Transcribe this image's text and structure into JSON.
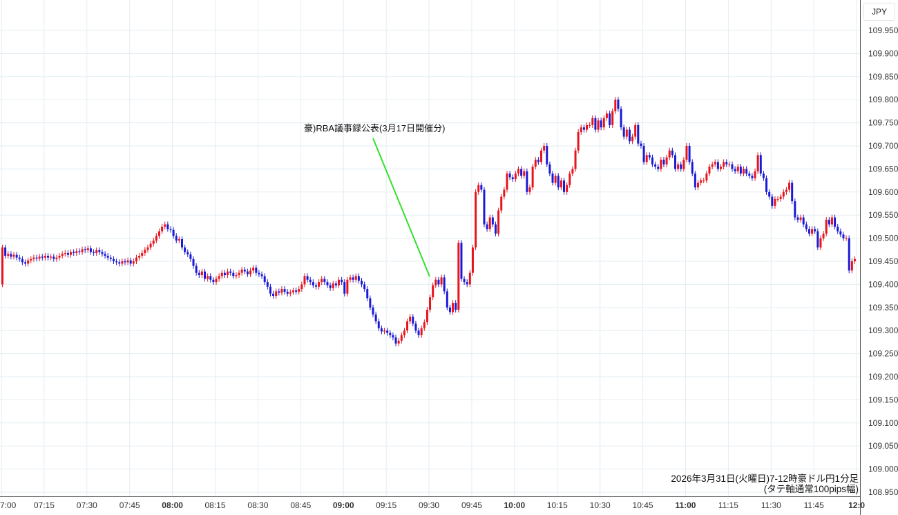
{
  "currency_label": "JPY",
  "annotation": "豪)RBA議事録公表(3月17日開催分)",
  "caption": {
    "line1": "2026年3月31日(火曜日)7-12時豪ドル円1分足",
    "line2": "(タテ軸通常100pips幅)"
  },
  "chart_data": {
    "type": "candlestick",
    "interval": "1 minute",
    "up_color": "#e8141c",
    "down_color": "#1a1ad6",
    "annotation_color": "#33e02a",
    "grid": true,
    "ylim": [
      108.95,
      109.95
    ],
    "yticks": [
      "109.950",
      "109.900",
      "109.850",
      "109.800",
      "109.750",
      "109.700",
      "109.650",
      "109.600",
      "109.550",
      "109.500",
      "109.450",
      "109.400",
      "109.350",
      "109.300",
      "109.250",
      "109.200",
      "109.150",
      "109.100",
      "109.050",
      "109.000",
      "108.950"
    ],
    "xticks": [
      {
        "label": "7:00",
        "bold": false
      },
      {
        "label": "07:15",
        "bold": false
      },
      {
        "label": "07:30",
        "bold": false
      },
      {
        "label": "07:45",
        "bold": false
      },
      {
        "label": "08:00",
        "bold": true
      },
      {
        "label": "08:15",
        "bold": false
      },
      {
        "label": "08:30",
        "bold": false
      },
      {
        "label": "08:45",
        "bold": false
      },
      {
        "label": "09:00",
        "bold": true
      },
      {
        "label": "09:15",
        "bold": false
      },
      {
        "label": "09:30",
        "bold": false
      },
      {
        "label": "09:45",
        "bold": false
      },
      {
        "label": "10:00",
        "bold": true
      },
      {
        "label": "10:15",
        "bold": false
      },
      {
        "label": "10:30",
        "bold": false
      },
      {
        "label": "10:45",
        "bold": false
      },
      {
        "label": "11:00",
        "bold": true
      },
      {
        "label": "11:15",
        "bold": false
      },
      {
        "label": "11:30",
        "bold": false
      },
      {
        "label": "11:45",
        "bold": false
      },
      {
        "label": "12:0",
        "bold": true
      }
    ],
    "annotation_time": "09:30",
    "start_time": "07:00",
    "close": [
      109.48,
      109.462,
      109.466,
      109.46,
      109.464,
      109.458,
      109.455,
      109.448,
      109.445,
      109.452,
      109.455,
      109.458,
      109.456,
      109.46,
      109.458,
      109.462,
      109.458,
      109.46,
      109.455,
      109.458,
      109.462,
      109.466,
      109.468,
      109.464,
      109.47,
      109.468,
      109.472,
      109.47,
      109.476,
      109.474,
      109.478,
      109.47,
      109.468,
      109.474,
      109.47,
      109.466,
      109.462,
      109.458,
      109.455,
      109.45,
      109.448,
      109.445,
      109.45,
      109.448,
      109.452,
      109.445,
      109.45,
      109.458,
      109.462,
      109.468,
      109.475,
      109.48,
      109.488,
      109.495,
      109.505,
      109.515,
      109.525,
      109.53,
      109.52,
      109.518,
      109.505,
      109.495,
      109.498,
      109.48,
      109.47,
      109.465,
      109.455,
      109.44,
      109.425,
      109.42,
      109.428,
      109.412,
      109.418,
      109.41,
      109.405,
      109.412,
      109.418,
      109.425,
      109.42,
      109.428,
      109.425,
      109.418,
      109.42,
      109.425,
      109.432,
      109.428,
      109.422,
      109.43,
      109.436,
      109.425,
      109.422,
      109.418,
      109.405,
      109.395,
      109.38,
      109.375,
      109.385,
      109.382,
      109.39,
      109.384,
      109.38,
      109.383,
      109.387,
      109.384,
      109.39,
      109.4,
      109.418,
      109.41,
      109.405,
      109.398,
      109.395,
      109.405,
      109.412,
      109.405,
      109.398,
      109.392,
      109.402,
      109.398,
      109.41,
      109.405,
      109.38,
      109.41,
      109.415,
      109.41,
      109.418,
      109.408,
      109.4,
      109.39,
      109.37,
      109.35,
      109.335,
      109.32,
      109.305,
      109.298,
      109.3,
      109.295,
      109.29,
      109.285,
      109.272,
      109.278,
      109.29,
      109.3,
      109.32,
      109.33,
      109.315,
      109.3,
      109.29,
      109.305,
      109.318,
      109.345,
      109.372,
      109.398,
      109.41,
      109.4,
      109.415,
      109.385,
      109.35,
      109.34,
      109.36,
      109.345,
      109.49,
      109.412,
      109.405,
      109.4,
      109.425,
      109.48,
      109.6,
      109.615,
      109.605,
      109.53,
      109.52,
      109.545,
      109.53,
      109.51,
      109.56,
      109.59,
      109.605,
      109.64,
      109.632,
      109.628,
      109.64,
      109.65,
      109.635,
      109.645,
      109.6,
      109.61,
      109.655,
      109.67,
      109.665,
      109.69,
      109.7,
      109.66,
      109.64,
      109.62,
      109.635,
      109.61,
      109.625,
      109.6,
      109.615,
      109.64,
      109.65,
      109.69,
      109.73,
      109.74,
      109.735,
      109.745,
      109.745,
      109.76,
      109.735,
      109.755,
      109.74,
      109.76,
      109.77,
      109.745,
      109.775,
      109.8,
      109.78,
      109.74,
      109.72,
      109.735,
      109.71,
      109.72,
      109.745,
      109.705,
      109.7,
      109.665,
      109.68,
      109.675,
      109.66,
      109.655,
      109.65,
      109.67,
      109.66,
      109.675,
      109.69,
      109.68,
      109.65,
      109.66,
      109.65,
      109.67,
      109.7,
      109.665,
      109.64,
      109.61,
      109.62,
      109.625,
      109.625,
      109.64,
      109.655,
      109.66,
      109.665,
      109.65,
      109.655,
      109.665,
      109.66,
      109.66,
      109.65,
      109.645,
      109.655,
      109.64,
      109.65,
      109.64,
      109.635,
      109.63,
      109.645,
      109.68,
      109.64,
      109.63,
      109.6,
      109.59,
      109.57,
      109.585,
      109.585,
      109.59,
      109.6,
      109.605,
      109.62,
      109.58,
      109.545,
      109.54,
      109.545,
      109.53,
      109.52,
      109.51,
      109.52,
      109.515,
      109.48,
      109.5,
      109.51,
      109.54,
      109.53,
      109.545,
      109.525,
      109.515,
      109.508,
      109.5,
      109.5,
      109.43,
      109.45,
      109.455
    ],
    "first_open": 109.4
  }
}
